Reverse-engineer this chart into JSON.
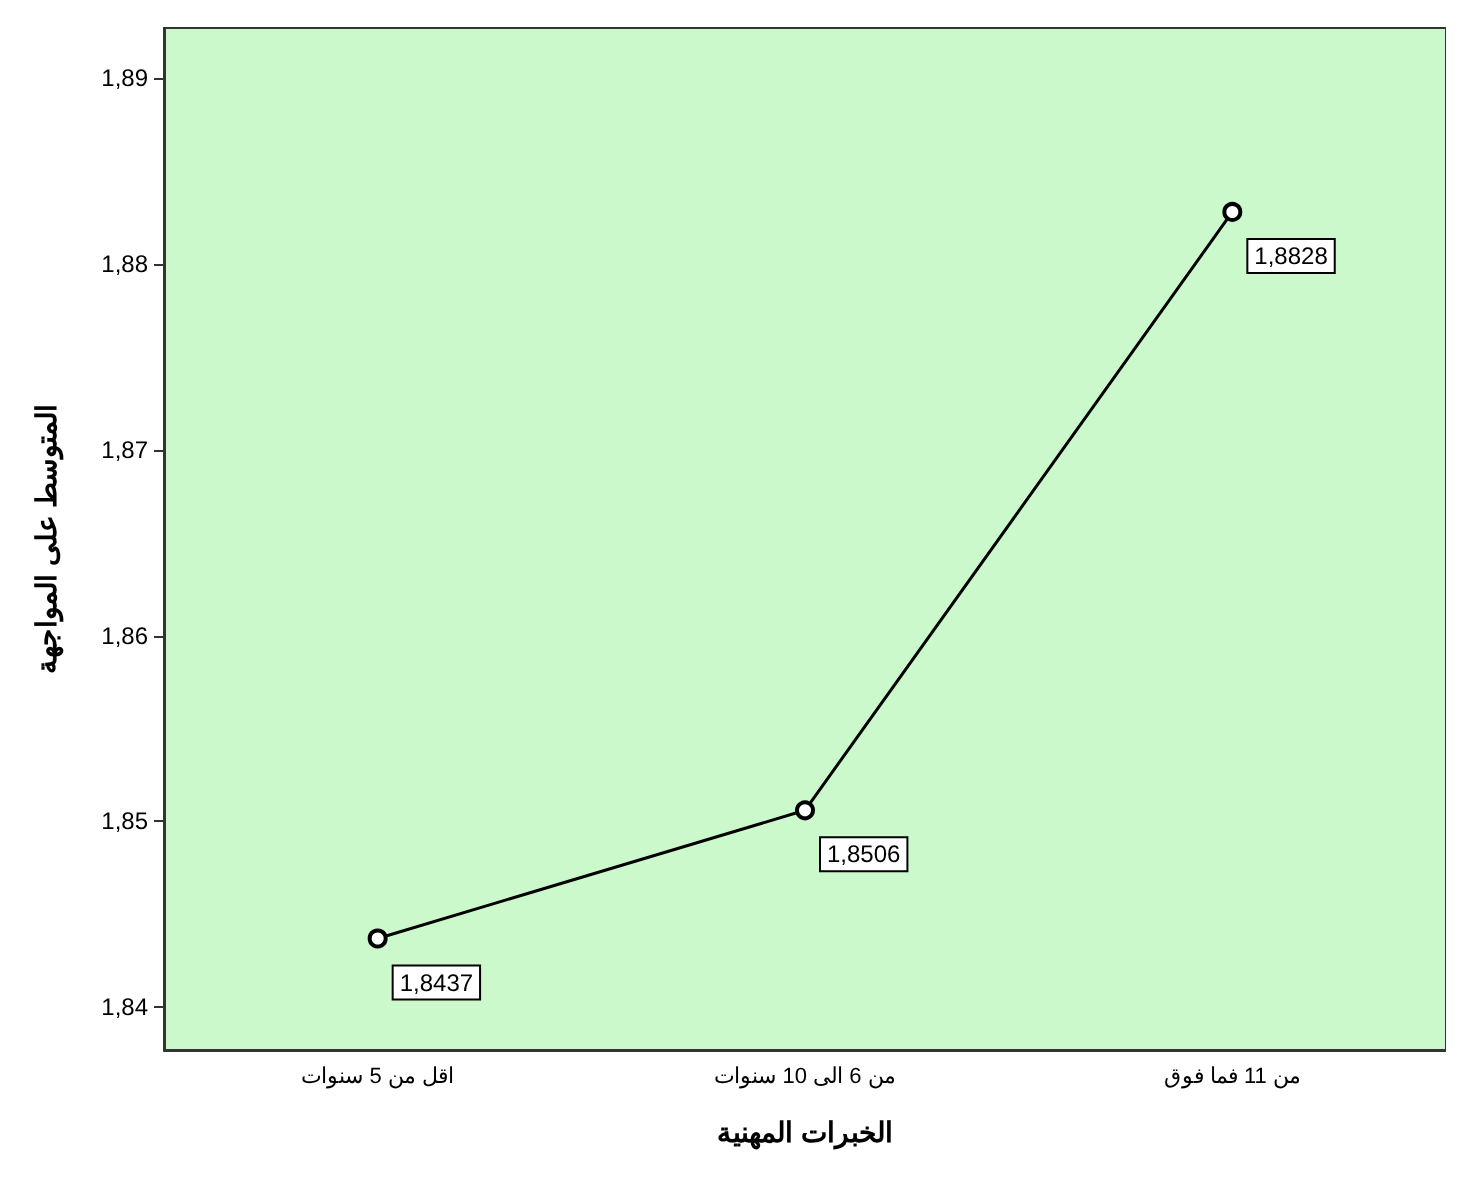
{
  "chart_data": {
    "type": "line",
    "xlabel": "الخبرات المهنية",
    "ylabel": "المتوسط على المواجهة",
    "categories": [
      "اقل من 5 سنوات",
      "من 6 الى 10 سنوات",
      "من 11 فما فوق"
    ],
    "series": [
      {
        "color": "#000000",
        "values": [
          1.8437,
          1.8506,
          1.8828
        ],
        "value_labels": [
          "1,8437",
          "1,8506",
          "1,8828"
        ]
      }
    ],
    "ylim": [
      1.8377,
      1.8927
    ],
    "yticks": [
      {
        "value": 1.84,
        "label": "1,84"
      },
      {
        "value": 1.85,
        "label": "1,85"
      },
      {
        "value": 1.86,
        "label": "1,86"
      },
      {
        "value": 1.87,
        "label": "1,87"
      },
      {
        "value": 1.88,
        "label": "1,88"
      },
      {
        "value": 1.89,
        "label": "1,89"
      }
    ],
    "grid": false,
    "marker": "circle",
    "line_style": "solid"
  }
}
